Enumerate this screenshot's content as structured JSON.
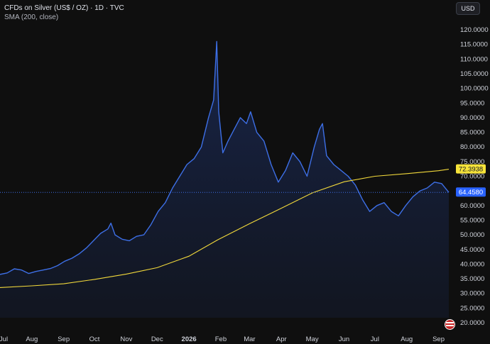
{
  "legend": {
    "title": "CFDs on Silver (US$ / OZ) · 1D · TVC",
    "indicator": "SMA (200, close)"
  },
  "currency_button": "USD",
  "colors": {
    "background": "#0f0f0f",
    "price_line": "#3d6fe6",
    "sma_line": "#f2d93b",
    "price_label_bg": "#2962ff",
    "sma_label_bg": "#f7e43a"
  },
  "icons": {
    "region_flag": "flag-icon"
  },
  "chart_data": {
    "type": "area",
    "title": "CFDs on Silver (US$ / OZ) · 1D · TVC",
    "xlabel": "",
    "ylabel": "",
    "ylim": [
      17.5,
      121
    ],
    "grid": false,
    "x_ticks": [
      "Jul",
      "Aug",
      "Sep",
      "Oct",
      "Nov",
      "Dec",
      "2026",
      "Feb",
      "Mar",
      "Apr",
      "May",
      "Jun",
      "Jul",
      "Aug",
      "Sep"
    ],
    "y_ticks": [
      "120.0000",
      "115.0000",
      "110.0000",
      "105.0000",
      "100.0000",
      "95.0000",
      "90.0000",
      "85.0000",
      "80.0000",
      "75.0000",
      "70.0000",
      "65.0000",
      "60.0000",
      "55.0000",
      "50.0000",
      "45.0000",
      "40.0000",
      "35.0000",
      "30.0000",
      "25.0000",
      "20.0000"
    ],
    "price_label": "64.4580",
    "sma_label": "72.3938",
    "series": [
      {
        "name": "CFDs on Silver (US$ / OZ)",
        "x": [
          "2025-07-01",
          "2025-07-08",
          "2025-07-15",
          "2025-07-22",
          "2025-07-29",
          "2025-08-05",
          "2025-08-12",
          "2025-08-19",
          "2025-08-26",
          "2025-09-02",
          "2025-09-09",
          "2025-09-16",
          "2025-09-23",
          "2025-09-30",
          "2025-10-07",
          "2025-10-14",
          "2025-10-17",
          "2025-10-21",
          "2025-10-28",
          "2025-11-04",
          "2025-11-11",
          "2025-11-18",
          "2025-11-25",
          "2025-12-02",
          "2025-12-09",
          "2025-12-16",
          "2025-12-23",
          "2025-12-30",
          "2026-01-06",
          "2026-01-13",
          "2026-01-20",
          "2026-01-25",
          "2026-01-28",
          "2026-01-30",
          "2026-02-03",
          "2026-02-08",
          "2026-02-14",
          "2026-02-20",
          "2026-02-26",
          "2026-03-02",
          "2026-03-08",
          "2026-03-15",
          "2026-03-22",
          "2026-03-29",
          "2026-04-05",
          "2026-04-12",
          "2026-04-19",
          "2026-04-26",
          "2026-05-03",
          "2026-05-08",
          "2026-05-11",
          "2026-05-15",
          "2026-05-22",
          "2026-05-29",
          "2026-06-05",
          "2026-06-12",
          "2026-06-19",
          "2026-06-26",
          "2026-07-03",
          "2026-07-10",
          "2026-07-17",
          "2026-07-24",
          "2026-07-31",
          "2026-08-07",
          "2026-08-14",
          "2026-08-21",
          "2026-08-28",
          "2026-09-04",
          "2026-09-11"
        ],
        "values": [
          36.5,
          37.0,
          38.4,
          38.0,
          36.8,
          37.5,
          38.0,
          38.5,
          39.5,
          41.0,
          42.0,
          43.5,
          45.5,
          48.0,
          50.5,
          52.0,
          54.0,
          50.0,
          48.5,
          48.0,
          49.5,
          50.0,
          53.5,
          58.0,
          61.0,
          66.0,
          70.0,
          74.0,
          76.0,
          80.0,
          90.0,
          96.0,
          116.0,
          92.0,
          78.0,
          82.0,
          86.0,
          90.0,
          88.0,
          92.0,
          85.0,
          82.0,
          74.0,
          68.0,
          72.0,
          78.0,
          75.0,
          70.0,
          80.0,
          86.0,
          88.0,
          77.0,
          74.0,
          72.0,
          70.0,
          67.0,
          62.0,
          58.0,
          60.0,
          61.0,
          58.0,
          56.5,
          60.0,
          63.0,
          65.0,
          66.0,
          68.0,
          67.5,
          64.5
        ]
      },
      {
        "name": "SMA (200, close)",
        "x": [
          "2025-07-01",
          "2025-08-01",
          "2025-09-01",
          "2025-10-01",
          "2025-11-01",
          "2025-12-01",
          "2026-01-01",
          "2026-01-29",
          "2026-03-01",
          "2026-04-01",
          "2026-05-01",
          "2026-06-01",
          "2026-07-01",
          "2026-08-01",
          "2026-09-01",
          "2026-09-11"
        ],
        "values": [
          32.0,
          32.6,
          33.3,
          34.8,
          36.6,
          38.8,
          42.7,
          48.3,
          53.8,
          59.1,
          64.3,
          68.1,
          70.0,
          70.9,
          71.9,
          72.39
        ]
      }
    ]
  }
}
